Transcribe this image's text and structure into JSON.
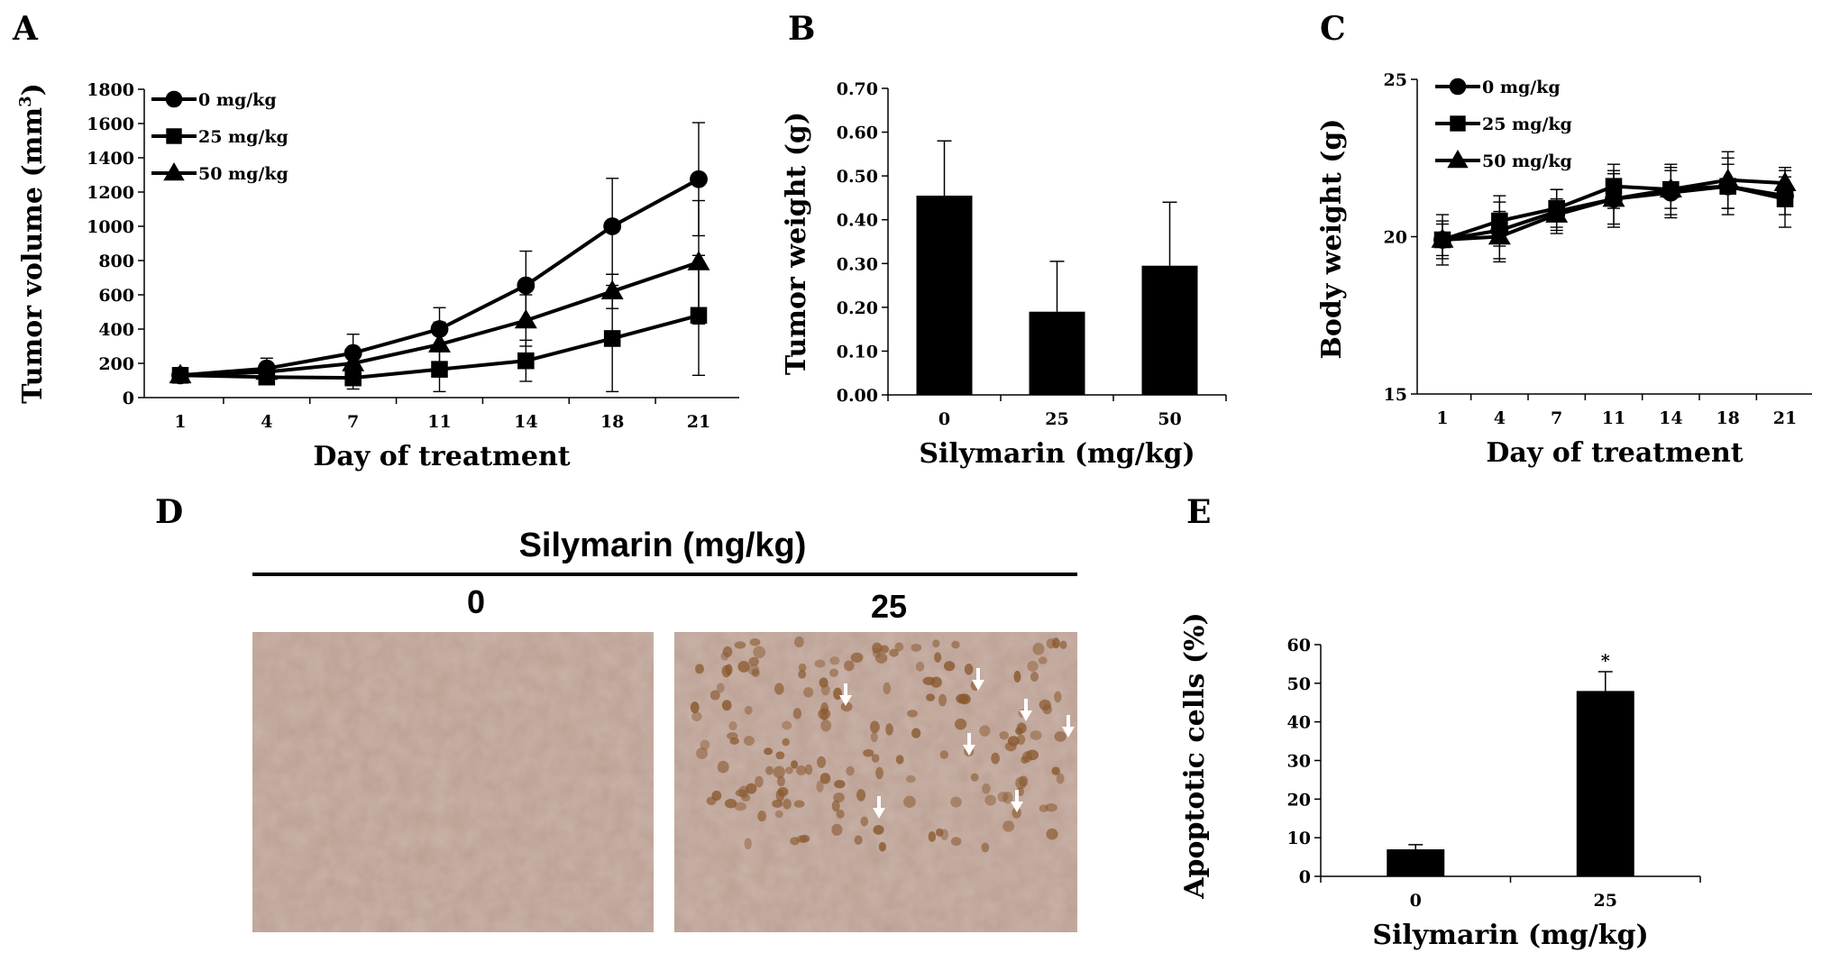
{
  "panels": {
    "a_letter": "A",
    "b_letter": "B",
    "c_letter": "C",
    "d_letter": "D",
    "e_letter": "E"
  },
  "chart_data": [
    {
      "id": "A",
      "type": "line",
      "xlabel": "Day of treatment",
      "ylabel": "Tumor volume (mm3)",
      "ylabel_main": "Tumor volume (mm",
      "ylabel_sup": "3",
      "ylabel_end": ")",
      "categories": [
        "1",
        "4",
        "7",
        "11",
        "14",
        "18",
        "21"
      ],
      "ylim": [
        0,
        1800
      ],
      "yticks": [
        "0",
        "200",
        "400",
        "600",
        "800",
        "1000",
        "1200",
        "1400",
        "1600",
        "1800"
      ],
      "legend_position": "top-left",
      "series": [
        {
          "name": "0 mg/kg",
          "marker": "circle",
          "values": [
            130,
            170,
            260,
            400,
            655,
            1000,
            1275
          ],
          "errors": [
            20,
            60,
            110,
            125,
            200,
            280,
            330
          ]
        },
        {
          "name": "25 mg/kg",
          "marker": "square",
          "values": [
            130,
            120,
            115,
            165,
            215,
            345,
            480
          ],
          "errors": [
            20,
            35,
            65,
            130,
            120,
            310,
            350
          ]
        },
        {
          "name": "50 mg/kg",
          "marker": "triangle",
          "values": [
            130,
            150,
            200,
            310,
            450,
            620,
            790
          ],
          "errors": [
            20,
            50,
            80,
            130,
            150,
            100,
            360
          ]
        }
      ]
    },
    {
      "id": "B",
      "type": "bar",
      "xlabel": "Silymarin (mg/kg)",
      "ylabel": "Tumor weight (g)",
      "categories": [
        "0",
        "25",
        "50"
      ],
      "values": [
        0.455,
        0.19,
        0.295
      ],
      "errors": [
        0.125,
        0.115,
        0.145
      ],
      "ylim": [
        0,
        0.7
      ],
      "yticks": [
        "0.00",
        "0.10",
        "0.20",
        "0.30",
        "0.40",
        "0.50",
        "0.60",
        "0.70"
      ],
      "bar_color": "#000000"
    },
    {
      "id": "C",
      "type": "line",
      "xlabel": "Day of treatment",
      "ylabel": "Body weight (g)",
      "categories": [
        "1",
        "4",
        "7",
        "11",
        "14",
        "18",
        "21"
      ],
      "ylim": [
        15,
        25
      ],
      "yticks": [
        "15",
        "20",
        "25"
      ],
      "legend_position": "top-left",
      "series": [
        {
          "name": "0 mg/kg",
          "marker": "circle",
          "values": [
            19.9,
            20.2,
            20.8,
            21.2,
            21.4,
            21.6,
            21.3
          ],
          "errors": [
            0.8,
            0.9,
            0.7,
            0.9,
            0.8,
            0.7,
            0.6
          ]
        },
        {
          "name": "25 mg/kg",
          "marker": "square",
          "values": [
            19.9,
            20.5,
            20.9,
            21.6,
            21.5,
            21.6,
            21.2
          ],
          "errors": [
            0.6,
            0.8,
            0.6,
            0.7,
            0.8,
            0.9,
            0.9
          ]
        },
        {
          "name": "50 mg/kg",
          "marker": "triangle",
          "values": [
            19.9,
            20.0,
            20.7,
            21.2,
            21.5,
            21.8,
            21.7
          ],
          "errors": [
            0.5,
            0.8,
            0.5,
            0.8,
            0.6,
            0.9,
            0.5
          ]
        }
      ]
    },
    {
      "id": "E",
      "type": "bar",
      "xlabel": "Silymarin (mg/kg)",
      "ylabel": "Apoptotic cells (%)",
      "categories": [
        "0",
        "25"
      ],
      "values": [
        7,
        48
      ],
      "errors": [
        1.2,
        5
      ],
      "ylim": [
        0,
        60
      ],
      "yticks": [
        "0",
        "10",
        "20",
        "30",
        "40",
        "50",
        "60"
      ],
      "annotations": [
        "",
        "*"
      ],
      "bar_color": "#000000"
    }
  ],
  "panel_d": {
    "title": "Silymarin (mg/kg)",
    "groups": [
      "0",
      "25"
    ],
    "image_color": "#b89a8c",
    "stain_color": "#8a5a30",
    "arrow_count": 7
  }
}
